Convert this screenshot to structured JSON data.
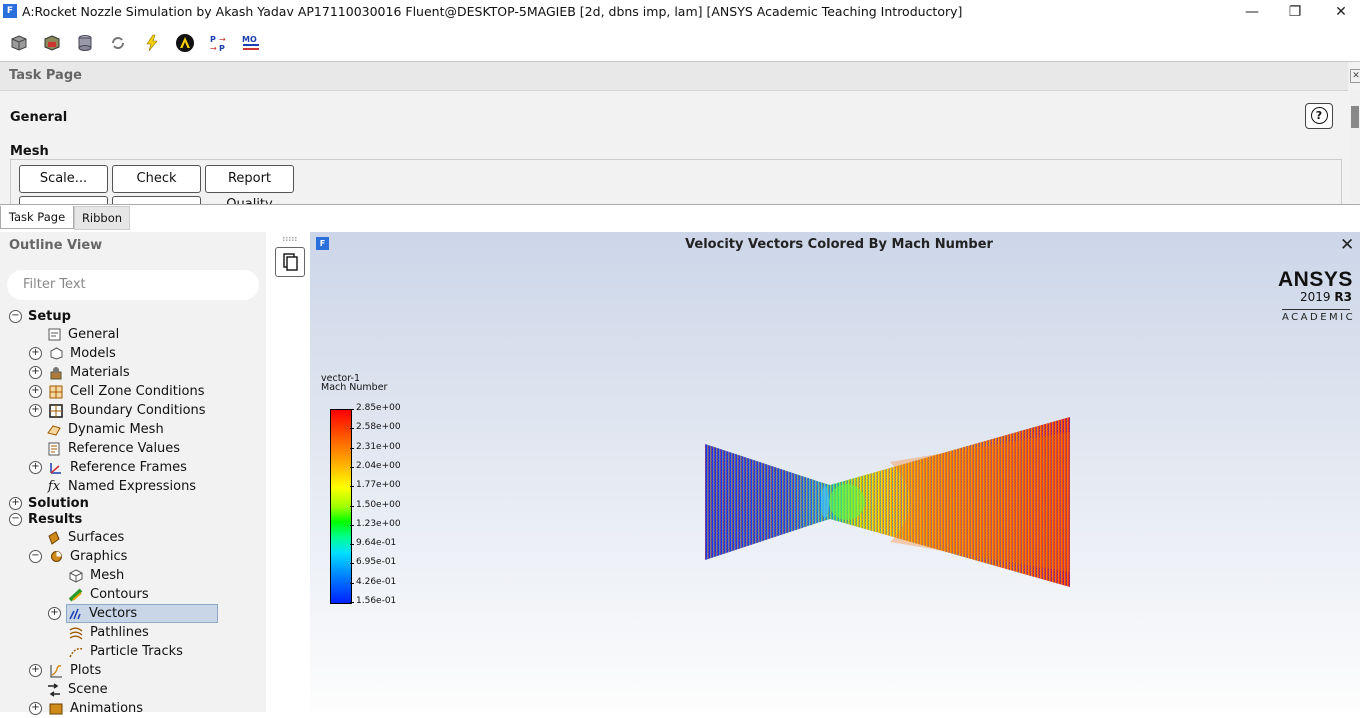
{
  "window": {
    "app_icon_letter": "F",
    "title": "A:Rocket Nozzle Simulation by Akash Yadav AP17110030016 Fluent@DESKTOP-5MAGIEB  [2d, dbns imp, lam] [ANSYS Academic Teaching Introductory]",
    "minimize": "—",
    "maximize": "❐",
    "close": "✕"
  },
  "toolbar": {
    "icons": [
      "mesh-cube-icon",
      "case-data-icon",
      "cylinder-icon",
      "refresh-icon",
      "lightning-icon",
      "fluent-launch-icon",
      "parameters-icon",
      "mode-icon"
    ]
  },
  "task_page": {
    "header": "Task Page",
    "close_glyph": "✕",
    "section": "General",
    "help_glyph": "?",
    "mesh_label": "Mesh",
    "buttons": {
      "scale": "Scale...",
      "check": "Check",
      "report_quality": "Report Quality"
    }
  },
  "tabs": {
    "task_page": "Task Page",
    "ribbon": "Ribbon"
  },
  "outline": {
    "title": "Outline View",
    "filter_placeholder": "Filter Text",
    "items": {
      "setup": "Setup",
      "general": "General",
      "models": "Models",
      "materials": "Materials",
      "cell_zone": "Cell Zone Conditions",
      "boundary": "Boundary Conditions",
      "dynamic_mesh": "Dynamic Mesh",
      "reference_values": "Reference Values",
      "reference_frames": "Reference Frames",
      "named_expressions": "Named Expressions",
      "solution": "Solution",
      "results": "Results",
      "surfaces": "Surfaces",
      "graphics": "Graphics",
      "mesh": "Mesh",
      "contours": "Contours",
      "vectors": "Vectors",
      "pathlines": "Pathlines",
      "particle_tracks": "Particle Tracks",
      "plots": "Plots",
      "scene": "Scene",
      "animations": "Animations"
    }
  },
  "graphics": {
    "title": "Velocity Vectors Colored By Mach Number",
    "close_glyph": "✕",
    "brand": "ANSYS",
    "version_year": "2019",
    "version_release": "R3",
    "edition": "ACADEMIC",
    "legend": {
      "name": "vector-1",
      "variable": "Mach Number",
      "ticks": [
        "2.85e+00",
        "2.58e+00",
        "2.31e+00",
        "2.04e+00",
        "1.77e+00",
        "1.50e+00",
        "1.23e+00",
        "9.64e-01",
        "6.95e-01",
        "4.26e-01",
        "1.56e-01"
      ]
    },
    "colors": {
      "low": "#0020ff",
      "mid": "#00ff00",
      "high": "#ff0000"
    }
  }
}
